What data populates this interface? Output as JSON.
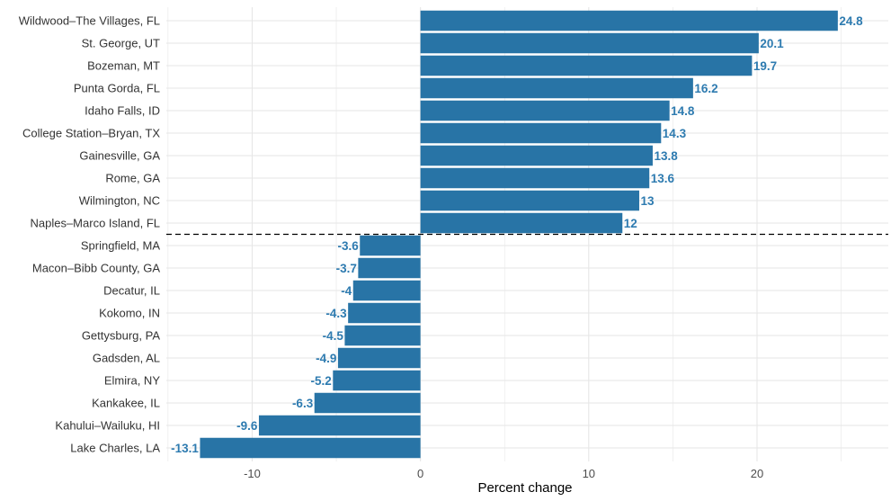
{
  "chart_data": {
    "type": "bar",
    "orientation": "horizontal",
    "categories": [
      "Wildwood–The Villages, FL",
      "St. George, UT",
      "Bozeman, MT",
      "Punta Gorda, FL",
      "Idaho Falls, ID",
      "College Station–Bryan, TX",
      "Gainesville, GA",
      "Rome, GA",
      "Wilmington, NC",
      "Naples–Marco Island, FL",
      "Springfield, MA",
      "Macon–Bibb County, GA",
      "Decatur, IL",
      "Kokomo, IN",
      "Gettysburg, PA",
      "Gadsden, AL",
      "Elmira, NY",
      "Kankakee, IL",
      "Kahului–Wailuku, HI",
      "Lake Charles, LA"
    ],
    "values": [
      24.8,
      20.1,
      19.7,
      16.2,
      14.8,
      14.3,
      13.8,
      13.6,
      13,
      12,
      -3.6,
      -3.7,
      -4,
      -4.3,
      -4.5,
      -4.9,
      -5.2,
      -6.3,
      -9.6,
      -13.1
    ],
    "value_labels": [
      "24.8",
      "20.1",
      "19.7",
      "16.2",
      "14.8",
      "14.3",
      "13.8",
      "13.6",
      "13",
      "12",
      "-3.6",
      "-3.7",
      "-4",
      "-4.3",
      "-4.5",
      "-4.9",
      "-5.2",
      "-6.3",
      "-9.6",
      "-13.1"
    ],
    "xlabel": "Percent change",
    "ylabel": "",
    "title": "",
    "xlim": [
      -15.1,
      27.8
    ],
    "xticks": [
      -10,
      0,
      10,
      20
    ],
    "xtick_labels": [
      "-10",
      "0",
      "10",
      "20"
    ],
    "grid": true,
    "legend": "none",
    "separator": {
      "style": "dashed",
      "between": [
        "Naples–Marco Island, FL",
        "Springfield, MA"
      ]
    },
    "colors": {
      "bar": "#2874A6",
      "label": "#2E7BB0",
      "grid": "#E6E6E6",
      "separator": "#000000"
    }
  }
}
